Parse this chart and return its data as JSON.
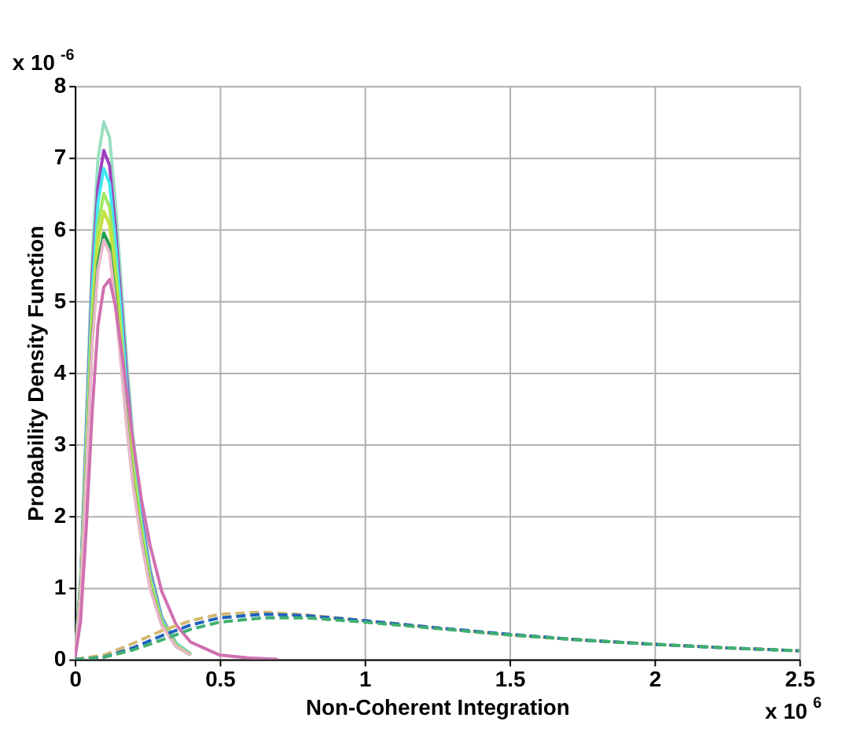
{
  "chart_data": {
    "type": "line",
    "xlabel": "Non-Coherent Integration",
    "ylabel": "Probability Density Function",
    "annotations": [
      "x 10$^{-6}$",
      "x 10$^{6}$"
    ],
    "x": [
      0,
      0.02,
      0.04,
      0.06,
      0.08,
      0.1,
      0.12,
      0.14,
      0.16,
      0.18,
      0.2,
      0.23,
      0.26,
      0.3,
      0.35,
      0.4,
      0.5,
      0.6,
      0.7
    ],
    "series": [
      {
        "color": "#99dfc0",
        "values": [
          0,
          1.13,
          3.38,
          5.63,
          6.98,
          7.5,
          7.28,
          6.38,
          5.25,
          4.13,
          3.15,
          2.1,
          1.28,
          0.6,
          0.23,
          0.08,
          null,
          null,
          null
        ]
      },
      {
        "color": "#a040c0",
        "values": [
          0,
          1.07,
          3.2,
          5.33,
          6.6,
          7.1,
          6.89,
          6.04,
          4.97,
          3.91,
          2.98,
          1.99,
          1.21,
          0.57,
          0.21,
          0.07,
          null,
          null,
          null
        ]
      },
      {
        "color": "#40e8f0",
        "values": [
          0,
          1.03,
          3.08,
          5.14,
          6.37,
          6.85,
          6.64,
          5.82,
          4.8,
          3.77,
          2.88,
          1.92,
          1.16,
          0.55,
          0.21,
          0.07,
          null,
          null,
          null
        ]
      },
      {
        "color": "#a0e860",
        "values": [
          0,
          0.98,
          2.93,
          4.88,
          6.05,
          6.5,
          6.31,
          5.53,
          4.55,
          3.58,
          2.73,
          1.82,
          1.11,
          0.52,
          0.2,
          0.07,
          null,
          null,
          null
        ]
      },
      {
        "color": "#c8e040",
        "values": [
          0,
          0.94,
          2.81,
          4.69,
          5.81,
          6.25,
          6.06,
          5.31,
          4.38,
          3.44,
          2.63,
          1.75,
          1.06,
          0.5,
          0.19,
          0.06,
          null,
          null,
          null
        ]
      },
      {
        "color": "#20a050",
        "values": [
          0,
          0.89,
          2.68,
          4.46,
          5.53,
          5.95,
          5.77,
          5.06,
          4.17,
          3.27,
          2.5,
          1.67,
          1.01,
          0.48,
          0.18,
          0.06,
          null,
          null,
          null
        ]
      },
      {
        "color": "#e8b8c8",
        "values": [
          0,
          0.88,
          2.63,
          4.39,
          5.44,
          5.85,
          5.67,
          4.97,
          4.1,
          3.22,
          2.46,
          1.64,
          0.99,
          0.47,
          0.18,
          0.06,
          null,
          null,
          null
        ]
      },
      {
        "color": "#d070b0",
        "values": [
          0,
          0.53,
          1.86,
          3.45,
          4.66,
          5.19,
          5.3,
          4.93,
          4.35,
          3.71,
          3.07,
          2.23,
          1.59,
          0.95,
          0.48,
          0.24,
          0.06,
          0.02,
          0
        ]
      },
      {
        "color": "#d4b870",
        "line_style": "dashed",
        "x": [
          0,
          0.1,
          0.2,
          0.3,
          0.4,
          0.5,
          0.65,
          0.8,
          1.0,
          1.25,
          1.5,
          1.75,
          2.0,
          2.25,
          2.5
        ],
        "values": [
          0,
          0.06,
          0.22,
          0.4,
          0.54,
          0.63,
          0.66,
          0.62,
          0.54,
          0.44,
          0.34,
          0.27,
          0.21,
          0.16,
          0.12
        ]
      },
      {
        "color": "#2060c0",
        "line_style": "dashed",
        "x": [
          0,
          0.1,
          0.2,
          0.3,
          0.4,
          0.5,
          0.65,
          0.8,
          1.0,
          1.25,
          1.5,
          1.75,
          2.0,
          2.25,
          2.5
        ],
        "values": [
          0,
          0.03,
          0.16,
          0.33,
          0.48,
          0.58,
          0.63,
          0.61,
          0.54,
          0.44,
          0.35,
          0.27,
          0.21,
          0.16,
          0.12
        ]
      },
      {
        "color": "#40b070",
        "line_style": "dashed",
        "x": [
          0,
          0.1,
          0.2,
          0.3,
          0.4,
          0.5,
          0.65,
          0.8,
          1.0,
          1.25,
          1.5,
          1.75,
          2.0,
          2.25,
          2.5
        ],
        "values": [
          0,
          0.03,
          0.13,
          0.27,
          0.42,
          0.52,
          0.58,
          0.58,
          0.52,
          0.43,
          0.34,
          0.27,
          0.21,
          0.16,
          0.12
        ]
      }
    ],
    "xlim": [
      0,
      2.5
    ],
    "xticks": [
      0,
      0.5,
      1,
      1.5,
      2,
      2.5
    ],
    "ylim": [
      0,
      8
    ],
    "yticks": [
      0,
      1,
      2,
      3,
      4,
      5,
      6,
      7,
      8
    ],
    "grid": true,
    "marker": "none",
    "line_style": "solid"
  }
}
